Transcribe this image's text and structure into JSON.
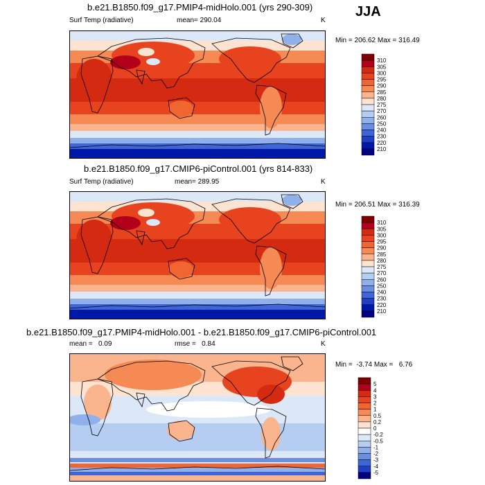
{
  "season": "JJA",
  "panels": [
    {
      "title": "b.e21.B1850.f09_g17.PMIP4-midHolo.001 (yrs 290-309)",
      "variable": "Surf Temp (radiative)",
      "stat": "mean= 290.04",
      "units": "K",
      "minmax": "Min = 206.62 Max = 316.49",
      "levels": [
        "310",
        "305",
        "300",
        "295",
        "290",
        "285",
        "280",
        "275",
        "270",
        "260",
        "250",
        "240",
        "230",
        "220",
        "210"
      ],
      "colors": [
        "#800000",
        "#b2001b",
        "#d42a12",
        "#e8431f",
        "#f06530",
        "#f58a54",
        "#fab48e",
        "#fde3d0",
        "#dce8f8",
        "#b4cdf0",
        "#8fb0ea",
        "#6a8fe0",
        "#3f66d8",
        "#1f3fc8",
        "#0018a8",
        "#000080"
      ]
    },
    {
      "title": "b.e21.B1850.f09_g17.CMIP6-piControl.001 (yrs 814-833)",
      "variable": "Surf Temp (radiative)",
      "stat": "mean= 289.95",
      "units": "K",
      "minmax": "Min = 206.51 Max = 316.39",
      "levels": [
        "310",
        "305",
        "300",
        "295",
        "290",
        "285",
        "280",
        "275",
        "270",
        "260",
        "250",
        "240",
        "230",
        "220",
        "210"
      ],
      "colors": [
        "#800000",
        "#b2001b",
        "#d42a12",
        "#e8431f",
        "#f06530",
        "#f58a54",
        "#fab48e",
        "#fde3d0",
        "#dce8f8",
        "#b4cdf0",
        "#8fb0ea",
        "#6a8fe0",
        "#3f66d8",
        "#1f3fc8",
        "#0018a8",
        "#000080"
      ]
    },
    {
      "title": "b.e21.B1850.f09_g17.PMIP4-midHolo.001 - b.e21.B1850.f09_g17.CMIP6-piControl.001",
      "stat": "mean =   0.09",
      "stat2": "rmse =   0.84",
      "units": "K",
      "minmax": "Min =  -3.74 Max =   6.76",
      "levels": [
        "5",
        "4",
        "3",
        "2",
        "1",
        "0.5",
        "0.2",
        "0",
        "-0.2",
        "-0.5",
        "-1",
        "-2",
        "-3",
        "-4",
        "-5"
      ],
      "colors": [
        "#800000",
        "#b2001b",
        "#d42a12",
        "#e8431f",
        "#f06530",
        "#f58a54",
        "#fab48e",
        "#fde3d0",
        "#ffffff",
        "#dce8f8",
        "#b4cdf0",
        "#8fb0ea",
        "#6a8fe0",
        "#3f66d8",
        "#1f3fc8",
        "#000080"
      ]
    }
  ]
}
